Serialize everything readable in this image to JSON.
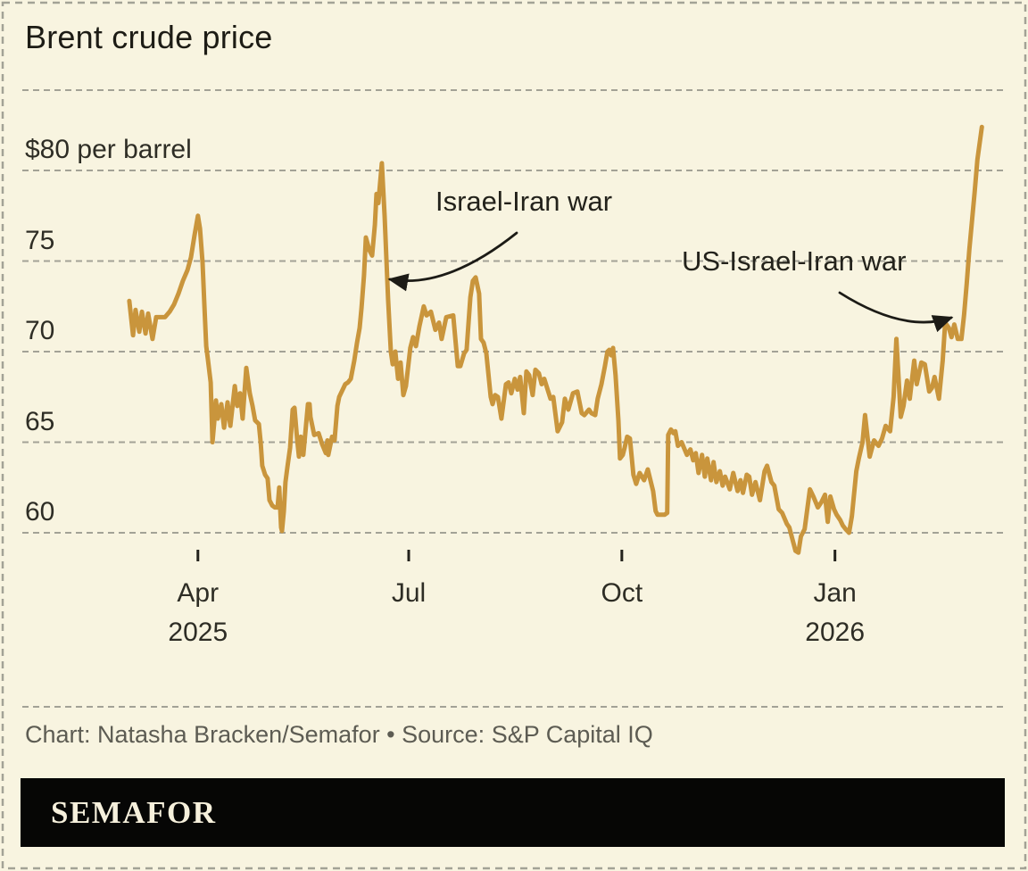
{
  "page": {
    "credit": "Chart: Natasha Bracken/Semafor • Source: S&P Capital IQ",
    "logo": "SEMAFOR"
  },
  "colors": {
    "background": "#f8f4e0",
    "line": "#c9953c",
    "grid": "#a3a296",
    "tick": "#23221c",
    "text_dark": "#1d1c15",
    "text_gray": "#5d5c53",
    "arrow": "#1c1b16",
    "logo_bar": "#060605",
    "logo_text": "#f6f0dc"
  },
  "chart_data": {
    "type": "line",
    "title": "Brent crude price",
    "unit": "$ per barrel",
    "grid": "dashed horizontal gridlines",
    "legend_position": "none",
    "y_domain": [
      57.5,
      83.5
    ],
    "y_ticks": [
      {
        "value": 80,
        "label": "$80 per barrel"
      },
      {
        "value": 75,
        "label": "75"
      },
      {
        "value": 70,
        "label": "70"
      },
      {
        "value": 65,
        "label": "65"
      },
      {
        "value": 60,
        "label": "60"
      }
    ],
    "x_unit": "days since 2025-03-01",
    "x_domain": [
      0,
      371
    ],
    "x_ticks": [
      {
        "day": 31,
        "label": "Apr",
        "year": "2025"
      },
      {
        "day": 122,
        "label": "Jul",
        "year": ""
      },
      {
        "day": 214,
        "label": "Oct",
        "year": ""
      },
      {
        "day": 306,
        "label": "Jan",
        "year": "2026"
      }
    ],
    "annotations": [
      {
        "text": "Israel-Iran war",
        "points_to": "June 2025 spike, ~$80"
      },
      {
        "text": "US-Israel-Iran war",
        "points_to": "Feb 2026 spike, ~$82"
      }
    ],
    "series": [
      {
        "name": "Brent crude price, USD per barrel",
        "color": "#c9953c",
        "points": [
          [
            1.4,
            72.8
          ],
          [
            3,
            70.9
          ],
          [
            4.1,
            72.3
          ],
          [
            5.7,
            71.1
          ],
          [
            6.8,
            72.2
          ],
          [
            8.4,
            71.0
          ],
          [
            9.5,
            72.1
          ],
          [
            11.4,
            70.7
          ],
          [
            13,
            71.9
          ],
          [
            16.8,
            71.9
          ],
          [
            18.8,
            72.2
          ],
          [
            20.7,
            72.6
          ],
          [
            22.6,
            73.2
          ],
          [
            24.5,
            73.9
          ],
          [
            26.5,
            74.5
          ],
          [
            28,
            75.2
          ],
          [
            29.5,
            76.4
          ],
          [
            31,
            77.5
          ],
          [
            31.9,
            76.8
          ],
          [
            33,
            74.9
          ],
          [
            33.8,
            72.6
          ],
          [
            34.6,
            70.3
          ],
          [
            35.3,
            69.6
          ],
          [
            36.5,
            68.3
          ],
          [
            37.3,
            65.0
          ],
          [
            38,
            66.0
          ],
          [
            38.8,
            67.3
          ],
          [
            39.6,
            66.3
          ],
          [
            41.1,
            67.1
          ],
          [
            42.3,
            65.8
          ],
          [
            43.8,
            67.2
          ],
          [
            45,
            65.9
          ],
          [
            46.9,
            68.1
          ],
          [
            48,
            67.0
          ],
          [
            49.2,
            67.7
          ],
          [
            50.3,
            66.3
          ],
          [
            51.9,
            69.1
          ],
          [
            53.4,
            67.7
          ],
          [
            54.6,
            67.0
          ],
          [
            55.7,
            66.2
          ],
          [
            57.3,
            66.0
          ],
          [
            58.1,
            65.0
          ],
          [
            58.8,
            63.7
          ],
          [
            60,
            63.2
          ],
          [
            61.1,
            63.0
          ],
          [
            61.9,
            61.8
          ],
          [
            63.1,
            61.5
          ],
          [
            64.2,
            61.4
          ],
          [
            65.4,
            61.4
          ],
          [
            66.1,
            62.5
          ],
          [
            66.9,
            60.3
          ],
          [
            67.3,
            60.1
          ],
          [
            68.1,
            61.2
          ],
          [
            68.8,
            62.8
          ],
          [
            69.6,
            63.6
          ],
          [
            70.8,
            64.7
          ],
          [
            71.9,
            66.8
          ],
          [
            72.7,
            66.9
          ],
          [
            73.8,
            65.2
          ],
          [
            74.6,
            64.2
          ],
          [
            75.4,
            65.3
          ],
          [
            76.5,
            64.3
          ],
          [
            78.5,
            67.1
          ],
          [
            79.2,
            67.1
          ],
          [
            79.6,
            66.4
          ],
          [
            80.4,
            65.9
          ],
          [
            81.2,
            65.4
          ],
          [
            83.1,
            65.5
          ],
          [
            84.6,
            64.9
          ],
          [
            86.2,
            64.4
          ],
          [
            86.9,
            65.1
          ],
          [
            87.3,
            64.3
          ],
          [
            88.9,
            65.3
          ],
          [
            90,
            65.1
          ],
          [
            91.2,
            67.0
          ],
          [
            92,
            67.5
          ],
          [
            93.1,
            67.8
          ],
          [
            94.6,
            68.2
          ],
          [
            95.8,
            68.3
          ],
          [
            97,
            68.5
          ],
          [
            98.5,
            69.5
          ],
          [
            99.7,
            70.5
          ],
          [
            100.8,
            71.3
          ],
          [
            101.6,
            72.4
          ],
          [
            102.7,
            74.2
          ],
          [
            103.5,
            76.3
          ],
          [
            105,
            75.6
          ],
          [
            106.2,
            75.3
          ],
          [
            107.4,
            77.0
          ],
          [
            108.1,
            78.7
          ],
          [
            108.9,
            78.2
          ],
          [
            110.4,
            80.4
          ],
          [
            111.6,
            77.5
          ],
          [
            112.4,
            75.0
          ],
          [
            113.1,
            72.9
          ],
          [
            114.3,
            70.0
          ],
          [
            115.1,
            69.3
          ],
          [
            116.2,
            70.0
          ],
          [
            117.4,
            68.5
          ],
          [
            118.5,
            69.4
          ],
          [
            119.7,
            67.6
          ],
          [
            120.8,
            68.1
          ],
          [
            122.7,
            70.2
          ],
          [
            123.9,
            70.8
          ],
          [
            125.1,
            70.3
          ],
          [
            126.6,
            71.4
          ],
          [
            128.5,
            72.5
          ],
          [
            129.7,
            72.0
          ],
          [
            131.6,
            72.2
          ],
          [
            133.5,
            71.2
          ],
          [
            135.1,
            71.6
          ],
          [
            136.2,
            70.7
          ],
          [
            138.2,
            71.9
          ],
          [
            141.2,
            72.0
          ],
          [
            143.2,
            69.2
          ],
          [
            144.3,
            69.2
          ],
          [
            145.9,
            69.9
          ],
          [
            147,
            70.1
          ],
          [
            148.6,
            73.0
          ],
          [
            149.7,
            73.9
          ],
          [
            150.9,
            74.1
          ],
          [
            152.4,
            73.2
          ],
          [
            153.2,
            70.7
          ],
          [
            154.3,
            70.5
          ],
          [
            155.5,
            69.9
          ],
          [
            157.4,
            67.5
          ],
          [
            158.2,
            67.1
          ],
          [
            159.3,
            67.6
          ],
          [
            160.5,
            67.5
          ],
          [
            162,
            66.3
          ],
          [
            164,
            68.2
          ],
          [
            165.1,
            68.3
          ],
          [
            166.3,
            67.7
          ],
          [
            167.8,
            68.5
          ],
          [
            169,
            67.9
          ],
          [
            170.1,
            68.6
          ],
          [
            171.7,
            66.6
          ],
          [
            172.8,
            68.9
          ],
          [
            174,
            68.7
          ],
          [
            175.5,
            67.6
          ],
          [
            176.7,
            69.0
          ],
          [
            178.2,
            68.8
          ],
          [
            179.4,
            68.2
          ],
          [
            180.5,
            68.5
          ],
          [
            183.2,
            67.4
          ],
          [
            184.4,
            67.5
          ],
          [
            186.3,
            65.6
          ],
          [
            188.2,
            66.1
          ],
          [
            189.4,
            67.4
          ],
          [
            190.9,
            66.8
          ],
          [
            192.9,
            67.7
          ],
          [
            194.8,
            67.8
          ],
          [
            196.7,
            66.6
          ],
          [
            197.8,
            66.5
          ],
          [
            199.8,
            66.8
          ],
          [
            200.9,
            66.6
          ],
          [
            202.5,
            66.5
          ],
          [
            203.6,
            67.4
          ],
          [
            205.2,
            68.2
          ],
          [
            206.7,
            69.2
          ],
          [
            207.8,
            70.0
          ],
          [
            208.6,
            70.1
          ],
          [
            209.4,
            69.8
          ],
          [
            210.2,
            70.2
          ],
          [
            211.3,
            68.7
          ],
          [
            212.5,
            66.2
          ],
          [
            213.2,
            64.1
          ],
          [
            214.4,
            64.3
          ],
          [
            215.2,
            64.7
          ],
          [
            216.3,
            65.3
          ],
          [
            217.5,
            65.2
          ],
          [
            219,
            63.2
          ],
          [
            220.2,
            62.7
          ],
          [
            221.7,
            63.3
          ],
          [
            223.6,
            62.9
          ],
          [
            225.2,
            63.5
          ],
          [
            227.5,
            62.3
          ],
          [
            228.6,
            61.2
          ],
          [
            229.4,
            61.0
          ],
          [
            232.5,
            61.0
          ],
          [
            233.6,
            61.1
          ],
          [
            234,
            65.4
          ],
          [
            235.2,
            65.7
          ],
          [
            236.3,
            65.5
          ],
          [
            237.1,
            65.6
          ],
          [
            238.2,
            64.8
          ],
          [
            239.8,
            65.0
          ],
          [
            242.1,
            64.3
          ],
          [
            243.6,
            64.6
          ],
          [
            244.8,
            64.0
          ],
          [
            245.9,
            64.4
          ],
          [
            247.1,
            63.3
          ],
          [
            248.6,
            64.3
          ],
          [
            249.8,
            63.1
          ],
          [
            250.9,
            64.1
          ],
          [
            252.5,
            62.9
          ],
          [
            253.6,
            63.9
          ],
          [
            254.8,
            62.8
          ],
          [
            256.3,
            63.4
          ],
          [
            257.5,
            62.6
          ],
          [
            258.6,
            63.1
          ],
          [
            260.6,
            62.4
          ],
          [
            262.1,
            63.3
          ],
          [
            264,
            62.3
          ],
          [
            265.2,
            62.9
          ],
          [
            266.3,
            62.2
          ],
          [
            267.9,
            63.2
          ],
          [
            269,
            63.1
          ],
          [
            270.2,
            62.1
          ],
          [
            271.7,
            62.8
          ],
          [
            273.6,
            61.8
          ],
          [
            275.6,
            63.4
          ],
          [
            276.7,
            63.7
          ],
          [
            278.6,
            62.8
          ],
          [
            279.8,
            62.6
          ],
          [
            281.7,
            61.3
          ],
          [
            283.2,
            61.1
          ],
          [
            285.2,
            60.5
          ],
          [
            286.3,
            60.3
          ],
          [
            287.5,
            59.7
          ],
          [
            289,
            59.0
          ],
          [
            290.2,
            58.9
          ],
          [
            291.3,
            59.8
          ],
          [
            292.9,
            60.2
          ],
          [
            295.2,
            62.4
          ],
          [
            296.7,
            62.0
          ],
          [
            298.6,
            61.4
          ],
          [
            300.2,
            61.7
          ],
          [
            301.7,
            62.1
          ],
          [
            302.9,
            60.6
          ],
          [
            304,
            62.0
          ],
          [
            305.6,
            61.3
          ],
          [
            306.7,
            61.0
          ],
          [
            308.3,
            60.7
          ],
          [
            309.4,
            60.4
          ],
          [
            310.6,
            60.2
          ],
          [
            312.1,
            60.0
          ],
          [
            313.3,
            60.9
          ],
          [
            315.2,
            63.4
          ],
          [
            316.3,
            64.1
          ],
          [
            317.9,
            65.0
          ],
          [
            319,
            66.5
          ],
          [
            321,
            64.2
          ],
          [
            322.9,
            65.1
          ],
          [
            324.8,
            64.8
          ],
          [
            326.3,
            65.2
          ],
          [
            327.9,
            65.9
          ],
          [
            329.8,
            65.6
          ],
          [
            331.3,
            67.5
          ],
          [
            332.5,
            70.7
          ],
          [
            334.4,
            66.4
          ],
          [
            335.6,
            67.0
          ],
          [
            337.1,
            68.4
          ],
          [
            338.3,
            67.4
          ],
          [
            340.2,
            69.5
          ],
          [
            341.3,
            68.2
          ],
          [
            343.3,
            69.4
          ],
          [
            344.8,
            69.3
          ],
          [
            346.7,
            67.8
          ],
          [
            347.9,
            68.0
          ],
          [
            349,
            68.6
          ],
          [
            350.9,
            67.4
          ],
          [
            352.5,
            69.5
          ],
          [
            353.6,
            71.6
          ],
          [
            355.2,
            71.3
          ],
          [
            356.3,
            70.8
          ],
          [
            357.5,
            71.5
          ],
          [
            359,
            70.7
          ],
          [
            360.6,
            70.7
          ],
          [
            361.7,
            72.0
          ],
          [
            362.9,
            73.8
          ],
          [
            364,
            75.6
          ],
          [
            365.2,
            77.3
          ],
          [
            366.3,
            78.8
          ],
          [
            367.5,
            80.6
          ],
          [
            369.4,
            82.4
          ]
        ]
      }
    ]
  }
}
